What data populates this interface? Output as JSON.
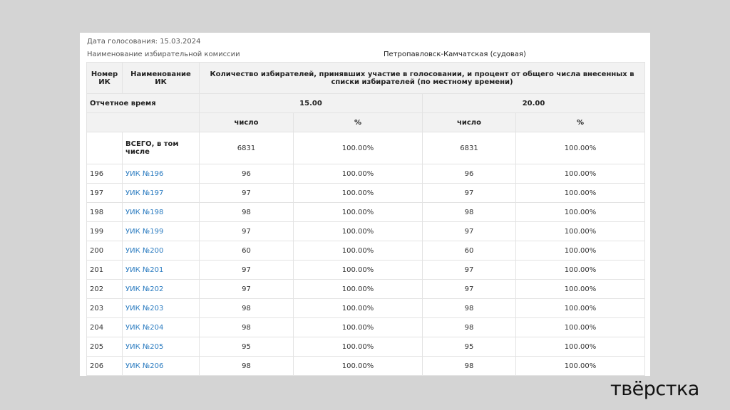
{
  "meta": {
    "date_label": "Дата голосования:  15.03.2024",
    "commission_label": "Наименование избирательной комиссии",
    "commission_name": "Петропавловск-Камчатская (судовая)"
  },
  "headers": {
    "num": "Номер ИК",
    "name": "Наименование ИК",
    "turnout": "Количество избирателей, принявших участие в голосовании, и процент от общего числа внесенных в списки избирателей (по местному времени)",
    "report_time": "Отчетное время",
    "time1": "15.00",
    "time2": "20.00",
    "count": "число",
    "pct": "%"
  },
  "total": {
    "name": "ВСЕГО, в том числе",
    "c1": "6831",
    "p1": "100.00%",
    "c2": "6831",
    "p2": "100.00%"
  },
  "rows": [
    {
      "num": "196",
      "name": "УИК №196",
      "c1": "96",
      "p1": "100.00%",
      "c2": "96",
      "p2": "100.00%"
    },
    {
      "num": "197",
      "name": "УИК №197",
      "c1": "97",
      "p1": "100.00%",
      "c2": "97",
      "p2": "100.00%"
    },
    {
      "num": "198",
      "name": "УИК №198",
      "c1": "98",
      "p1": "100.00%",
      "c2": "98",
      "p2": "100.00%"
    },
    {
      "num": "199",
      "name": "УИК №199",
      "c1": "97",
      "p1": "100.00%",
      "c2": "97",
      "p2": "100.00%"
    },
    {
      "num": "200",
      "name": "УИК №200",
      "c1": "60",
      "p1": "100.00%",
      "c2": "60",
      "p2": "100.00%"
    },
    {
      "num": "201",
      "name": "УИК №201",
      "c1": "97",
      "p1": "100.00%",
      "c2": "97",
      "p2": "100.00%"
    },
    {
      "num": "202",
      "name": "УИК №202",
      "c1": "97",
      "p1": "100.00%",
      "c2": "97",
      "p2": "100.00%"
    },
    {
      "num": "203",
      "name": "УИК №203",
      "c1": "98",
      "p1": "100.00%",
      "c2": "98",
      "p2": "100.00%"
    },
    {
      "num": "204",
      "name": "УИК №204",
      "c1": "98",
      "p1": "100.00%",
      "c2": "98",
      "p2": "100.00%"
    },
    {
      "num": "205",
      "name": "УИК №205",
      "c1": "95",
      "p1": "100.00%",
      "c2": "95",
      "p2": "100.00%"
    },
    {
      "num": "206",
      "name": "УИК №206",
      "c1": "98",
      "p1": "100.00%",
      "c2": "98",
      "p2": "100.00%"
    }
  ],
  "logo": "твёрстка"
}
